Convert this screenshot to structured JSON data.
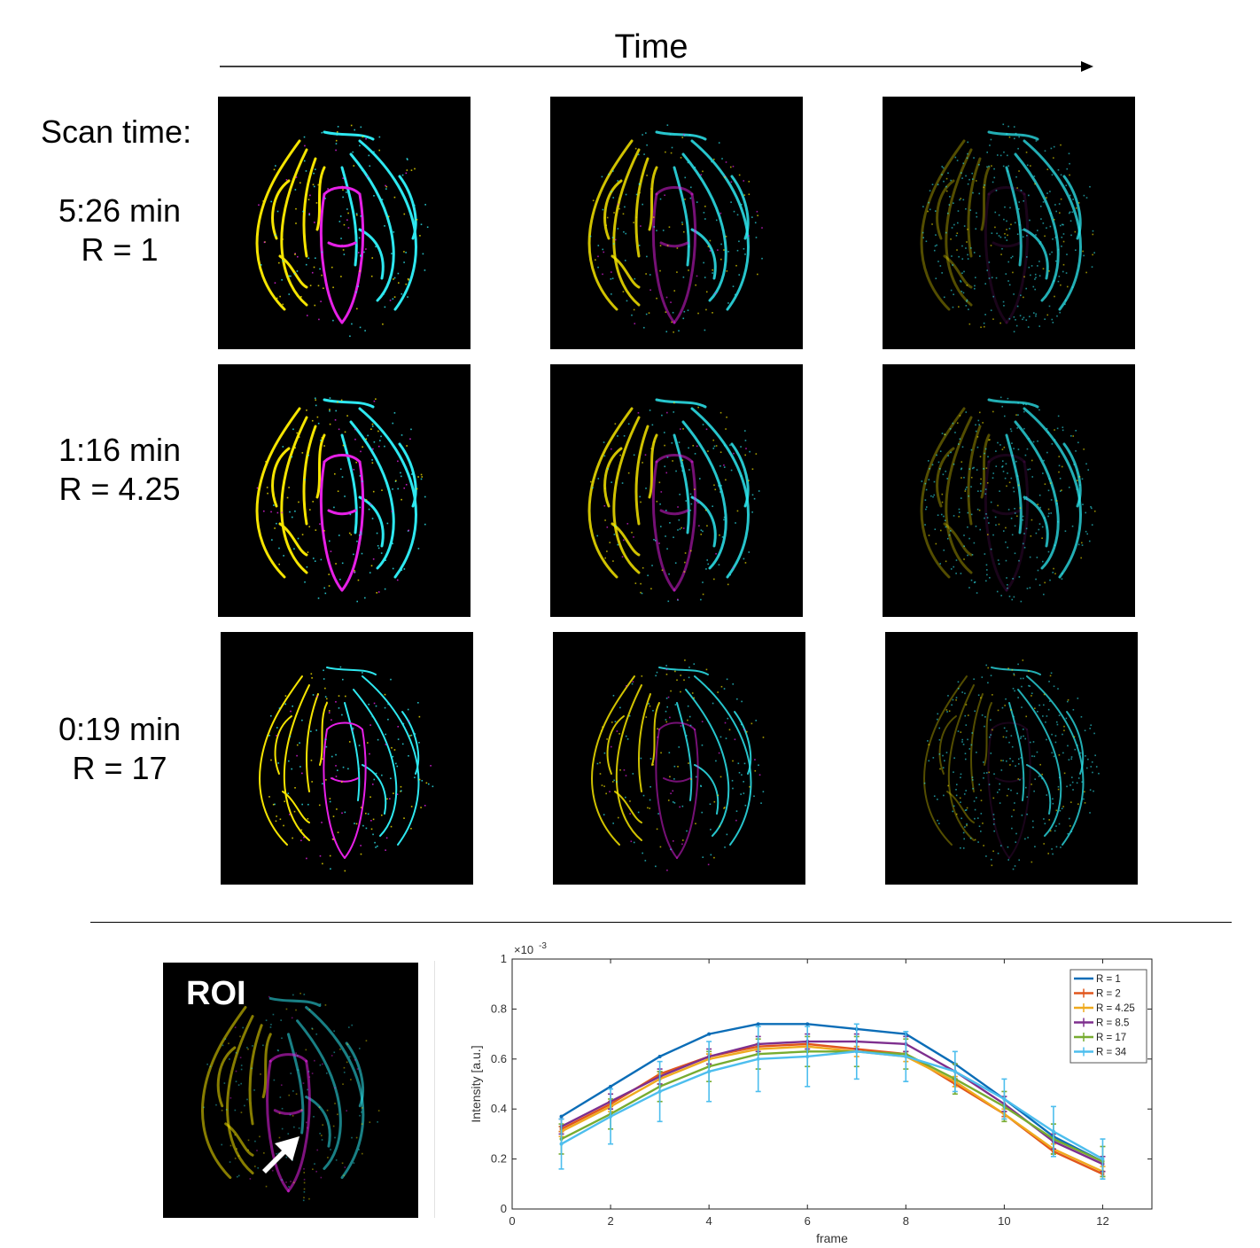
{
  "header": {
    "time_label": "Time",
    "scan_time_label": "Scan time:"
  },
  "rows": [
    {
      "line1": "5:26 min",
      "line2": "R = 1"
    },
    {
      "line1": "1:16 min",
      "line2": "R = 4.25"
    },
    {
      "line1": "0:19 min",
      "line2": "R = 17"
    }
  ],
  "colors": {
    "yellow": "#f5e400",
    "cyan": "#2ee8f0",
    "magenta": "#e620e6",
    "background": "#000000"
  },
  "roi": {
    "title": "ROI",
    "arrow_icon": "white-arrow-icon"
  },
  "chart_data": {
    "type": "line",
    "xlabel": "frame",
    "ylabel": "Intensity [a.u.]",
    "y_scale_label": "×10",
    "y_scale_exponent": "-3",
    "xlim": [
      0,
      13
    ],
    "ylim": [
      0,
      1
    ],
    "xticks": [
      "0",
      "2",
      "4",
      "6",
      "8",
      "10",
      "12"
    ],
    "yticks": [
      "0",
      "0.2",
      "0.4",
      "0.6",
      "0.8",
      "1"
    ],
    "legend_position": "top-right",
    "x": [
      1,
      2,
      3,
      4,
      5,
      6,
      7,
      8,
      9,
      10,
      11,
      12
    ],
    "series": [
      {
        "name": "R = 1",
        "color": "#0b6db7",
        "errorbars": false,
        "values": [
          0.37,
          0.49,
          0.61,
          0.7,
          0.74,
          0.74,
          0.72,
          0.7,
          0.58,
          0.44,
          0.29,
          0.19
        ],
        "err": []
      },
      {
        "name": "R = 2",
        "color": "#e1561c",
        "errorbars": true,
        "values": [
          0.32,
          0.42,
          0.54,
          0.61,
          0.65,
          0.66,
          0.64,
          0.62,
          0.5,
          0.38,
          0.23,
          0.14
        ],
        "err": [
          0.01,
          0.01,
          0.01,
          0.01,
          0.01,
          0.01,
          0.01,
          0.01,
          0.01,
          0.01,
          0.01,
          0.01
        ]
      },
      {
        "name": "R = 4.25",
        "color": "#efaa1e",
        "errorbars": true,
        "values": [
          0.31,
          0.41,
          0.52,
          0.6,
          0.64,
          0.65,
          0.63,
          0.61,
          0.51,
          0.38,
          0.24,
          0.15
        ],
        "err": [
          0.02,
          0.02,
          0.02,
          0.02,
          0.02,
          0.02,
          0.02,
          0.02,
          0.02,
          0.02,
          0.02,
          0.02
        ]
      },
      {
        "name": "R = 8.5",
        "color": "#7e2f8e",
        "errorbars": true,
        "values": [
          0.33,
          0.43,
          0.53,
          0.61,
          0.66,
          0.67,
          0.67,
          0.66,
          0.55,
          0.42,
          0.27,
          0.18
        ],
        "err": [
          0.03,
          0.03,
          0.03,
          0.03,
          0.03,
          0.03,
          0.03,
          0.03,
          0.03,
          0.03,
          0.03,
          0.03
        ]
      },
      {
        "name": "R = 17",
        "color": "#77ac30",
        "errorbars": true,
        "values": [
          0.28,
          0.38,
          0.49,
          0.57,
          0.62,
          0.63,
          0.63,
          0.62,
          0.52,
          0.41,
          0.28,
          0.19
        ],
        "err": [
          0.06,
          0.06,
          0.06,
          0.06,
          0.06,
          0.06,
          0.06,
          0.06,
          0.06,
          0.06,
          0.06,
          0.06
        ]
      },
      {
        "name": "R = 34",
        "color": "#4dbeee",
        "errorbars": true,
        "values": [
          0.26,
          0.37,
          0.47,
          0.55,
          0.6,
          0.61,
          0.63,
          0.61,
          0.55,
          0.44,
          0.31,
          0.2
        ],
        "err": [
          0.1,
          0.11,
          0.12,
          0.12,
          0.13,
          0.12,
          0.11,
          0.1,
          0.08,
          0.08,
          0.1,
          0.08
        ]
      }
    ]
  }
}
